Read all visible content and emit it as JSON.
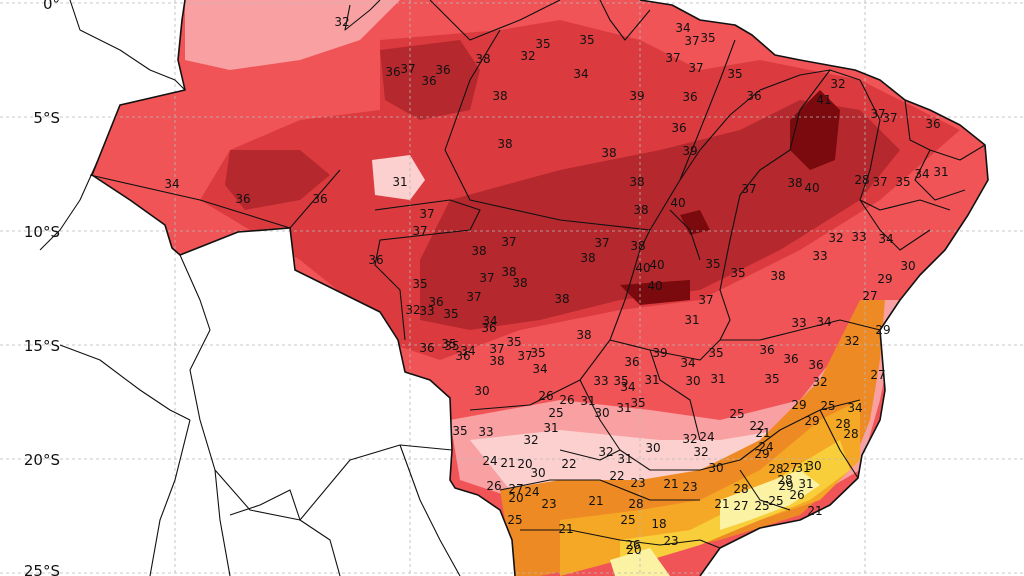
{
  "map": {
    "latitude_labels": [
      "0°",
      "5°S",
      "10°S",
      "15°S",
      "20°S",
      "25°S"
    ],
    "colors": {
      "c41": "#7a0a0e",
      "c38": "#b5282d",
      "c36": "#db3b3f",
      "c34": "#f05457",
      "c32": "#f8a0a2",
      "c30": "#fbd0cf",
      "c28": "#ee8a24",
      "c26": "#f5a726",
      "c24": "#f8cf3a",
      "c22": "#fbf2a4",
      "ocean": "#ffffff",
      "land_outside": "#ffffff"
    },
    "values": [
      {
        "t": "32"
      },
      {
        "t": "35"
      },
      {
        "t": "35"
      },
      {
        "t": "32"
      },
      {
        "t": "34"
      },
      {
        "t": "36"
      },
      {
        "t": "36"
      },
      {
        "t": "37"
      },
      {
        "t": "36"
      },
      {
        "t": "38"
      },
      {
        "t": "37"
      },
      {
        "t": "37"
      },
      {
        "t": "35"
      },
      {
        "t": "37"
      },
      {
        "t": "34"
      },
      {
        "t": "35"
      },
      {
        "t": "36"
      },
      {
        "t": "41"
      },
      {
        "t": "32"
      },
      {
        "t": "37"
      },
      {
        "t": "37"
      },
      {
        "t": "36"
      },
      {
        "t": "38"
      },
      {
        "t": "39"
      },
      {
        "t": "36"
      },
      {
        "t": "36"
      },
      {
        "t": "38"
      },
      {
        "t": "38"
      },
      {
        "t": "39"
      },
      {
        "t": "31"
      },
      {
        "t": "34"
      },
      {
        "t": "36"
      },
      {
        "t": "36"
      },
      {
        "t": "38"
      },
      {
        "t": "37"
      },
      {
        "t": "38"
      },
      {
        "t": "40"
      },
      {
        "t": "28"
      },
      {
        "t": "37"
      },
      {
        "t": "35"
      },
      {
        "t": "34"
      },
      {
        "t": "31"
      },
      {
        "t": "40"
      },
      {
        "t": "37"
      },
      {
        "t": "37"
      },
      {
        "t": "38"
      },
      {
        "t": "37"
      },
      {
        "t": "32"
      },
      {
        "t": "33"
      },
      {
        "t": "34"
      },
      {
        "t": "36"
      },
      {
        "t": "38"
      },
      {
        "t": "37"
      },
      {
        "t": "38"
      },
      {
        "t": "40"
      },
      {
        "t": "35"
      },
      {
        "t": "35"
      },
      {
        "t": "38"
      },
      {
        "t": "33"
      },
      {
        "t": "30"
      },
      {
        "t": "35"
      },
      {
        "t": "37"
      },
      {
        "t": "38"
      },
      {
        "t": "38"
      },
      {
        "t": "40"
      },
      {
        "t": "29"
      },
      {
        "t": "27"
      },
      {
        "t": "32"
      },
      {
        "t": "35"
      },
      {
        "t": "36"
      },
      {
        "t": "37"
      },
      {
        "t": "38"
      },
      {
        "t": "40"
      },
      {
        "t": "37"
      },
      {
        "t": "31"
      },
      {
        "t": "33"
      },
      {
        "t": "34"
      },
      {
        "t": "32"
      },
      {
        "t": "33"
      },
      {
        "t": "34"
      },
      {
        "t": "36"
      },
      {
        "t": "35"
      },
      {
        "t": "38"
      },
      {
        "t": "38"
      },
      {
        "t": "37"
      },
      {
        "t": "35"
      },
      {
        "t": "36"
      },
      {
        "t": "37"
      },
      {
        "t": "29"
      },
      {
        "t": "36"
      },
      {
        "t": "35"
      },
      {
        "t": "34"
      },
      {
        "t": "38"
      },
      {
        "t": "36"
      },
      {
        "t": "39"
      },
      {
        "t": "35"
      },
      {
        "t": "34"
      },
      {
        "t": "34"
      },
      {
        "t": "30"
      },
      {
        "t": "27"
      },
      {
        "t": "36"
      },
      {
        "t": "36"
      },
      {
        "t": "36"
      },
      {
        "t": "35"
      },
      {
        "t": "33"
      },
      {
        "t": "34"
      },
      {
        "t": "35"
      },
      {
        "t": "31"
      },
      {
        "t": "31"
      },
      {
        "t": "25"
      },
      {
        "t": "25"
      },
      {
        "t": "34"
      },
      {
        "t": "35"
      },
      {
        "t": "32"
      },
      {
        "t": "30"
      },
      {
        "t": "33"
      },
      {
        "t": "35"
      },
      {
        "t": "32"
      },
      {
        "t": "31"
      },
      {
        "t": "26"
      },
      {
        "t": "25"
      },
      {
        "t": "26"
      },
      {
        "t": "31"
      },
      {
        "t": "30"
      },
      {
        "t": "31"
      },
      {
        "t": "35"
      },
      {
        "t": "29"
      },
      {
        "t": "29"
      },
      {
        "t": "28"
      },
      {
        "t": "22"
      },
      {
        "t": "21"
      },
      {
        "t": "24"
      },
      {
        "t": "24"
      },
      {
        "t": "32"
      },
      {
        "t": "32"
      },
      {
        "t": "30"
      },
      {
        "t": "31"
      },
      {
        "t": "30"
      },
      {
        "t": "31"
      },
      {
        "t": "28"
      },
      {
        "t": "24"
      },
      {
        "t": "21"
      },
      {
        "t": "20"
      },
      {
        "t": "22"
      },
      {
        "t": "32"
      },
      {
        "t": "31"
      },
      {
        "t": "30"
      },
      {
        "t": "29"
      },
      {
        "t": "28"
      },
      {
        "t": "27"
      },
      {
        "t": "29"
      },
      {
        "t": "30"
      },
      {
        "t": "26"
      },
      {
        "t": "27"
      },
      {
        "t": "24"
      },
      {
        "t": "22"
      },
      {
        "t": "23"
      },
      {
        "t": "21"
      },
      {
        "t": "23"
      },
      {
        "t": "28"
      },
      {
        "t": "28"
      },
      {
        "t": "27"
      },
      {
        "t": "25"
      },
      {
        "t": "25"
      },
      {
        "t": "26"
      },
      {
        "t": "21"
      },
      {
        "t": "20"
      },
      {
        "t": "25"
      },
      {
        "t": "23"
      },
      {
        "t": "21"
      },
      {
        "t": "28"
      },
      {
        "t": "25"
      },
      {
        "t": "26"
      },
      {
        "t": "23"
      },
      {
        "t": "21"
      },
      {
        "t": "18"
      },
      {
        "t": "20"
      },
      {
        "t": "21"
      }
    ]
  }
}
